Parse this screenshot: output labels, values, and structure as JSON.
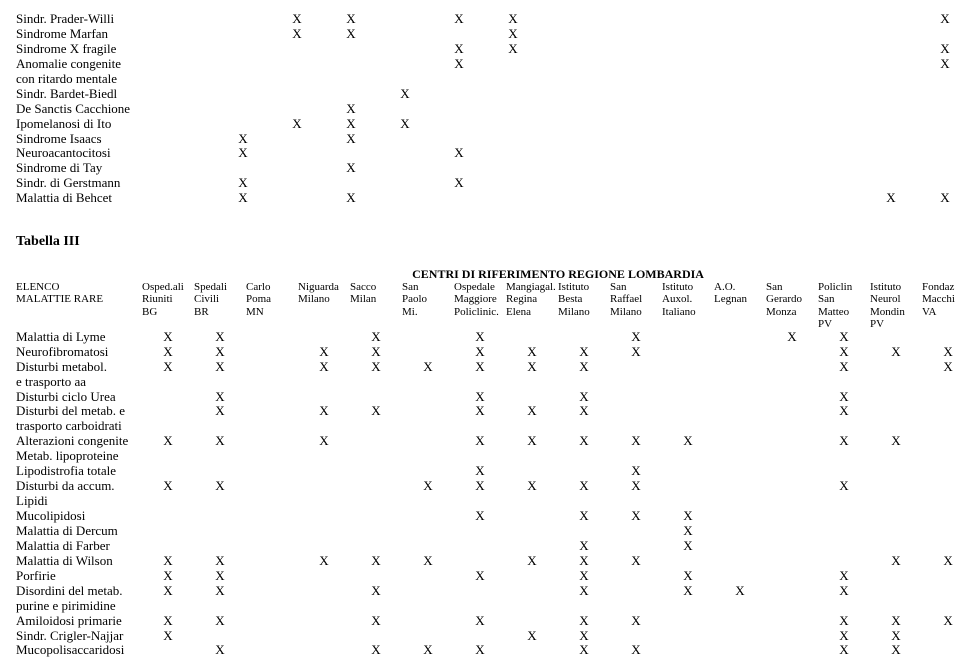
{
  "table1": {
    "rows": [
      {
        "label": "Sindr. Prader-Willi",
        "cells": [
          "",
          "",
          "X",
          "X",
          "",
          "X",
          "X",
          "",
          "",
          "",
          "",
          "",
          "",
          "",
          "X"
        ]
      },
      {
        "label": "Sindrome Marfan",
        "cells": [
          "",
          "",
          "X",
          "X",
          "",
          "",
          "X",
          "",
          "",
          "",
          "",
          "",
          "",
          "",
          ""
        ]
      },
      {
        "label": "Sindrome X fragile",
        "cells": [
          "",
          "",
          "",
          "",
          "",
          "X",
          "X",
          "",
          "",
          "",
          "",
          "",
          "",
          "",
          "X"
        ]
      },
      {
        "label": "Anomalie congenite",
        "cells": [
          "",
          "",
          "",
          "",
          "",
          "X",
          "",
          "",
          "",
          "",
          "",
          "",
          "",
          "",
          "X"
        ]
      },
      {
        "label": "con ritardo mentale",
        "cells": [
          "",
          "",
          "",
          "",
          "",
          "",
          "",
          "",
          "",
          "",
          "",
          "",
          "",
          "",
          ""
        ]
      },
      {
        "label": "Sindr. Bardet-Biedl",
        "cells": [
          "",
          "",
          "",
          "",
          "X",
          "",
          "",
          "",
          "",
          "",
          "",
          "",
          "",
          "",
          ""
        ]
      },
      {
        "label": "De Sanctis Cacchione",
        "cells": [
          "",
          "",
          "",
          "X",
          "",
          "",
          "",
          "",
          "",
          "",
          "",
          "",
          "",
          "",
          ""
        ]
      },
      {
        "label": "Ipomelanosi di Ito",
        "cells": [
          "",
          "",
          "X",
          "X",
          "X",
          "",
          "",
          "",
          "",
          "",
          "",
          "",
          "",
          "",
          ""
        ]
      },
      {
        "label": "Sindrome Isaacs",
        "cells": [
          "",
          "X",
          "",
          "X",
          "",
          "",
          "",
          "",
          "",
          "",
          "",
          "",
          "",
          "",
          ""
        ]
      },
      {
        "label": "Neuroacantocitosi",
        "cells": [
          "",
          "X",
          "",
          "",
          "",
          "X",
          "",
          "",
          "",
          "",
          "",
          "",
          "",
          "",
          ""
        ]
      },
      {
        "label": "Sindrome di Tay",
        "cells": [
          "",
          "",
          "",
          "X",
          "",
          "",
          "",
          "",
          "",
          "",
          "",
          "",
          "",
          "",
          ""
        ]
      },
      {
        "label": "Sindr. di Gerstmann",
        "cells": [
          "",
          "X",
          "",
          "",
          "",
          "X",
          "",
          "",
          "",
          "",
          "",
          "",
          "",
          "",
          ""
        ]
      },
      {
        "label": "Malattia di Behcet",
        "cells": [
          "",
          "X",
          "",
          "X",
          "",
          "",
          "",
          "",
          "",
          "",
          "",
          "",
          "",
          "X",
          "X"
        ]
      }
    ]
  },
  "tabella3": {
    "title": "Tabella III",
    "centri_title": "CENTRI DI RIFERIMENTO REGIONE LOMBARDIA",
    "elenco_label1": "ELENCO",
    "elenco_label2": "MALATTIE RARE",
    "headers": [
      [
        "Osped.ali",
        "Riuniti",
        "BG"
      ],
      [
        "Spedali",
        "Civili",
        "BR"
      ],
      [
        "Carlo",
        "Poma",
        "MN"
      ],
      [
        "Niguarda",
        "Milano",
        ""
      ],
      [
        "Sacco",
        "Milan",
        ""
      ],
      [
        "San",
        "Paolo",
        "Mi."
      ],
      [
        "Ospedale",
        "Maggiore",
        "Policlinic."
      ],
      [
        "Mangiagal.",
        "Regina",
        "Elena"
      ],
      [
        "Istituto",
        "Besta",
        "Milano"
      ],
      [
        "San",
        "Raffael",
        "Milano"
      ],
      [
        "Istituto",
        "Auxol.",
        "Italiano"
      ],
      [
        "A.O.",
        "Legnan",
        ""
      ],
      [
        "San",
        "Gerardo",
        "Monza"
      ],
      [
        "Policlin",
        "San",
        "Matteo",
        "PV"
      ],
      [
        "Istituto",
        "Neurol",
        "Mondin",
        "PV"
      ],
      [
        "Fondaz",
        "Macchi",
        "VA"
      ]
    ],
    "rows": [
      {
        "label": "Malattia di Lyme",
        "cells": [
          "X",
          "X",
          "",
          "",
          "X",
          "",
          "X",
          "",
          "",
          "X",
          "",
          "",
          "X",
          "X",
          "",
          ""
        ]
      },
      {
        "label": "Neurofibromatosi",
        "cells": [
          "X",
          "X",
          "",
          "X",
          "X",
          "",
          "X",
          "X",
          "X",
          "X",
          "",
          "",
          "",
          "X",
          "X",
          "X"
        ]
      },
      {
        "label": "Disturbi  metabol.",
        "cells": [
          "X",
          "X",
          "",
          "X",
          "X",
          "X",
          "X",
          "X",
          "X",
          "",
          "",
          "",
          "",
          "X",
          "",
          "X"
        ]
      },
      {
        "label": "e  trasporto aa",
        "cells": [
          "",
          "",
          "",
          "",
          "",
          "",
          "",
          "",
          "",
          "",
          "",
          "",
          "",
          "",
          "",
          ""
        ]
      },
      {
        "label": "Disturbi ciclo Urea",
        "cells": [
          "",
          "X",
          "",
          "",
          "",
          "",
          "X",
          "",
          "X",
          "",
          "",
          "",
          "",
          "X",
          "",
          ""
        ]
      },
      {
        "label": "Disturbi del metab.  e",
        "cells": [
          "",
          "X",
          "",
          "X",
          "X",
          "",
          "X",
          "X",
          "X",
          "",
          "",
          "",
          "",
          "X",
          "",
          ""
        ]
      },
      {
        "label": "trasporto carboidrati",
        "cells": [
          "",
          "",
          "",
          "",
          "",
          "",
          "",
          "",
          "",
          "",
          "",
          "",
          "",
          "",
          "",
          ""
        ]
      },
      {
        "label": "Alterazioni congenite",
        "cells": [
          "X",
          "X",
          "",
          "X",
          "",
          "",
          "X",
          "X",
          "X",
          "X",
          "X",
          "",
          "",
          "X",
          "X",
          ""
        ]
      },
      {
        "label": "Metab.  lipoproteine",
        "cells": [
          "",
          "",
          "",
          "",
          "",
          "",
          "",
          "",
          "",
          "",
          "",
          "",
          "",
          "",
          "",
          ""
        ]
      },
      {
        "label": "Lipodistrofia totale",
        "cells": [
          "",
          "",
          "",
          "",
          "",
          "",
          "X",
          "",
          "",
          "X",
          "",
          "",
          "",
          "",
          "",
          ""
        ]
      },
      {
        "label": "Disturbi da accum.",
        "cells": [
          "X",
          "X",
          "",
          "",
          "",
          "X",
          "X",
          "X",
          "X",
          "X",
          "",
          "",
          "",
          "X",
          "",
          ""
        ]
      },
      {
        "label": "Lipidi",
        "cells": [
          "",
          "",
          "",
          "",
          "",
          "",
          "",
          "",
          "",
          "",
          "",
          "",
          "",
          "",
          "",
          ""
        ]
      },
      {
        "label": "Mucolipidosi",
        "cells": [
          "",
          "",
          "",
          "",
          "",
          "",
          "X",
          "",
          "X",
          "X",
          "X",
          "",
          "",
          "",
          "",
          ""
        ]
      },
      {
        "label": "Malattia di Dercum",
        "cells": [
          "",
          "",
          "",
          "",
          "",
          "",
          "",
          "",
          "",
          "",
          "X",
          "",
          "",
          "",
          "",
          ""
        ]
      },
      {
        "label": "Malattia di Farber",
        "cells": [
          "",
          "",
          "",
          "",
          "",
          "",
          "",
          "",
          "X",
          "",
          "X",
          "",
          "",
          "",
          "",
          ""
        ]
      },
      {
        "label": "Malattia di Wilson",
        "cells": [
          "X",
          "X",
          "",
          "X",
          "X",
          "X",
          "",
          "X",
          "X",
          "X",
          "",
          "",
          "",
          "",
          "X",
          "X"
        ]
      },
      {
        "label": "Porfirie",
        "cells": [
          "X",
          "X",
          "",
          "",
          "",
          "",
          "X",
          "",
          "X",
          "",
          "X",
          "",
          "",
          "X",
          "",
          ""
        ]
      },
      {
        "label": "Disordini del metab.",
        "cells": [
          "X",
          "X",
          "",
          "",
          "X",
          "",
          "",
          "",
          "X",
          "",
          "X",
          "X",
          "",
          "X",
          "",
          ""
        ]
      },
      {
        "label": "purine e pirimidine",
        "cells": [
          "",
          "",
          "",
          "",
          "",
          "",
          "",
          "",
          "",
          "",
          "",
          "",
          "",
          "",
          "",
          ""
        ]
      },
      {
        "label": "Amiloidosi  primarie",
        "cells": [
          "X",
          "X",
          "",
          "",
          "X",
          "",
          "X",
          "",
          "X",
          "X",
          "",
          "",
          "",
          "X",
          "X",
          "X"
        ]
      },
      {
        "label": "Sindr. Crigler-Najjar",
        "cells": [
          "X",
          "",
          "",
          "",
          "",
          "",
          "",
          "X",
          "X",
          "",
          "",
          "",
          "",
          "X",
          "X",
          ""
        ]
      },
      {
        "label": "Mucopolisaccaridosi",
        "cells": [
          "",
          "X",
          "",
          "",
          "X",
          "X",
          "X",
          "",
          "X",
          "X",
          "",
          "",
          "",
          "X",
          "X",
          ""
        ]
      }
    ]
  }
}
